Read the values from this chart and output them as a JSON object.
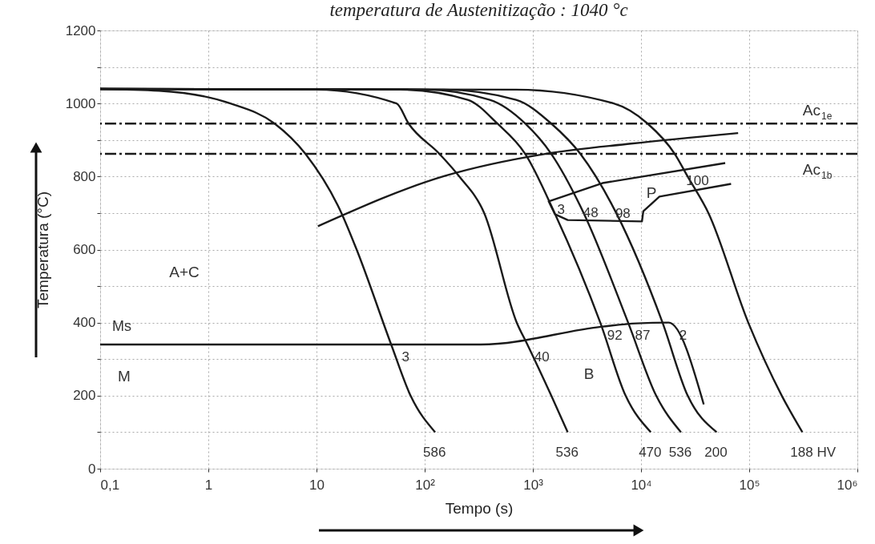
{
  "chart_data": {
    "type": "line",
    "title": "temperatura de Austenitização : 1040 °c",
    "xlabel": "Tempo (s)",
    "ylabel": "Temperatura (°C)",
    "log": "x",
    "grid": true,
    "marker": "none",
    "line_style": "solid",
    "xlim": [
      0.1,
      1000000
    ],
    "ylim": [
      0,
      1200
    ],
    "xticks": [
      {
        "value": 0.1,
        "label": "0,1"
      },
      1,
      10,
      {
        "value": 100,
        "label": "10²"
      },
      {
        "value": 1000,
        "label": "10³"
      },
      {
        "value": 10000,
        "label": "10⁴"
      },
      {
        "value": 100000,
        "label": "10⁵"
      },
      {
        "value": 1000000,
        "label": "10⁶"
      }
    ],
    "yticks": [
      0,
      {
        "value": 100,
        "label": null
      },
      200,
      {
        "value": 300,
        "label": null
      },
      400,
      {
        "value": 500,
        "label": null
      },
      600,
      {
        "value": 700,
        "label": null
      },
      800,
      {
        "value": 900,
        "label": null
      },
      1000,
      {
        "value": 1100,
        "label": null
      },
      1200
    ],
    "series": [
      {
        "color": "#1a1a1a",
        "x": [
          0.1,
          0.35,
          1.6,
          4.1,
          7.9,
          17,
          23.5,
          49,
          74,
          125
        ],
        "values": [
          1040,
          1035,
          1000,
          945,
          862,
          700,
          600,
          340,
          200,
          100
        ]
      },
      {
        "color": "#1a1a1a",
        "x": [
          0.1,
          10,
          55,
          71,
          137,
          209,
          355,
          710,
          890,
          1480,
          2100
        ],
        "values": [
          1040,
          1038,
          1000,
          945,
          862,
          800,
          700,
          400,
          340,
          200,
          100
        ]
      },
      {
        "color": "#1a1a1a",
        "x": [
          0.1,
          60,
          250,
          470,
          850,
          1590,
          4200,
          7200,
          12300
        ],
        "values": [
          1040,
          1038,
          1010,
          945,
          862,
          700,
          400,
          200,
          100
        ]
      },
      {
        "color": "#1a1a1a",
        "x": [
          0.1,
          100,
          400,
          850,
          1480,
          2950,
          7600,
          13800,
          23400
        ],
        "values": [
          1040,
          1038,
          1010,
          945,
          862,
          700,
          400,
          200,
          100
        ]
      },
      {
        "color": "#1a1a1a",
        "x": [
          0.1,
          150,
          700,
          1480,
          2750,
          5900,
          15800,
          27000,
          50000
        ],
        "values": [
          1040,
          1038,
          1010,
          945,
          862,
          700,
          400,
          200,
          100
        ]
      },
      {
        "color": "#1a1a1a",
        "x": [
          0.1,
          700,
          5600,
          11500,
          20500,
          27000,
          42000,
          98000,
          200000,
          310000
        ],
        "values": [
          1040,
          1038,
          1000,
          945,
          862,
          800,
          700,
          400,
          200,
          100
        ]
      },
      {
        "color": "#1a1a1a",
        "x": [
          10.3,
          155,
          1300,
          8100,
          79000
        ],
        "values": [
          664,
          802,
          862,
          890,
          919
        ]
      },
      {
        "color": "#1a1a1a",
        "x": [
          60000,
          4400,
          1400,
          1600,
          2100,
          10200,
          10500,
          14800,
          68000
        ],
        "values": [
          837,
          782,
          732,
          697,
          681,
          677,
          705,
          745,
          780
        ]
      },
      {
        "name": "Ms",
        "color": "#1a1a1a",
        "x": [
          0.1,
          330,
          4400,
          9100,
          18000,
          38000
        ],
        "values": [
          340,
          340,
          389,
          398,
          400,
          176
        ]
      }
    ],
    "ref_lines": [
      {
        "axis": "y",
        "value": 945,
        "label": "Ac$_{1e}$",
        "color": "#1a1a1a",
        "line_style": "dashed"
      },
      {
        "axis": "y",
        "value": 862,
        "label": "Ac$_{1b}$",
        "color": "#1a1a1a",
        "line_style": "dashed"
      }
    ],
    "annotations": [
      "A+C",
      "M",
      "B",
      "P",
      {
        "text": "3",
        "x": 49,
        "y": 340
      },
      {
        "text": "40",
        "x": 890,
        "y": 340
      },
      {
        "text": "92",
        "x": 4200,
        "y": 400
      },
      {
        "text": "87",
        "x": 7600,
        "y": 400
      },
      {
        "text": "2",
        "x": 18000,
        "y": 400
      },
      {
        "text": "3",
        "x": 1340,
        "y": 743
      },
      {
        "text": "48",
        "x": 2520,
        "y": 736
      },
      {
        "text": "98",
        "x": 5000,
        "y": 732
      },
      {
        "text": "100",
        "x": 24500,
        "y": 822
      },
      {
        "text": "586",
        "x": 125,
        "y": 100
      },
      {
        "text": "536",
        "x": 2100,
        "y": 100
      },
      {
        "text": "470",
        "x": 12300,
        "y": 100
      },
      {
        "text": "536",
        "x": 23400,
        "y": 100
      },
      {
        "text": "200",
        "x": 50000,
        "y": 100
      },
      {
        "text": "188 HV",
        "x": 310000,
        "y": 100
      }
    ]
  }
}
